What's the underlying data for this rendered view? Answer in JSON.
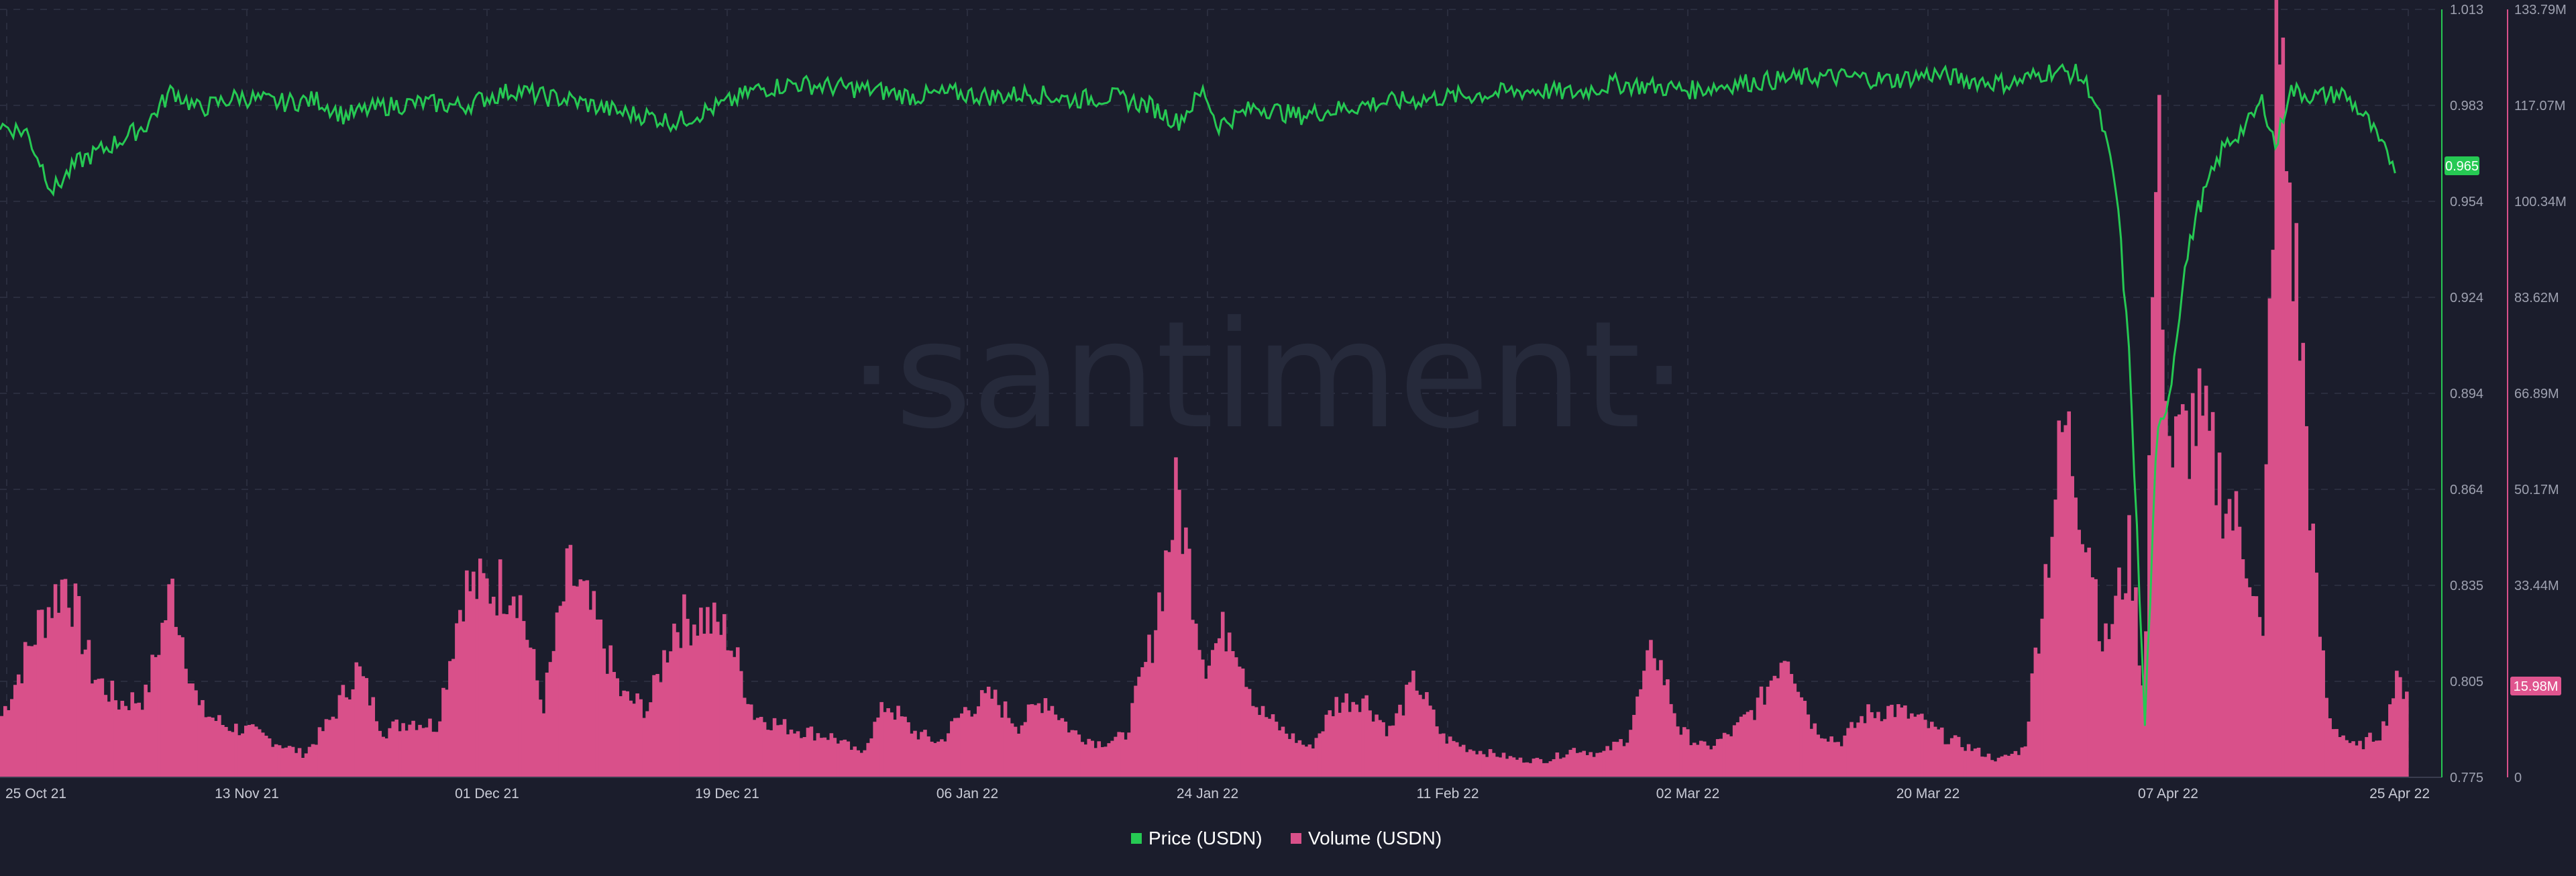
{
  "watermark": "·santiment·",
  "chart_data": {
    "type": "line+bar",
    "x_tick_labels": [
      "25 Oct 21",
      "13 Nov 21",
      "01 Dec 21",
      "19 Dec 21",
      "06 Jan 22",
      "24 Jan 22",
      "11 Feb 22",
      "02 Mar 22",
      "20 Mar 22",
      "07 Apr 22",
      "25 Apr 22"
    ],
    "x_range": [
      "2021-10-25",
      "2022-04-25"
    ],
    "price_axis": {
      "min": 0.775,
      "max": 1.013,
      "ticks": [
        "1.013",
        "0.983",
        "0.954",
        "0.924",
        "0.894",
        "0.864",
        "0.835",
        "0.805",
        "0.775"
      ]
    },
    "volume_axis": {
      "min": 0,
      "max": 133.79,
      "unit": "M",
      "ticks": [
        "133.79M",
        "117.07M",
        "100.34M",
        "83.62M",
        "66.89M",
        "50.17M",
        "33.44M",
        "15.98M",
        "0"
      ]
    },
    "current": {
      "price_label": "0.965",
      "volume_label": "15.98M"
    },
    "grid": true,
    "legend_position": "bottom-center",
    "colors": {
      "price": "#26c953",
      "volume": "#d9508a",
      "price_badge": "#26c953",
      "volume_badge": "#e0558f"
    },
    "series": [
      {
        "name": "Price (USDN)",
        "kind": "line",
        "points": [
          [
            "2021-10-25",
            0.977
          ],
          [
            "2021-10-27",
            0.975
          ],
          [
            "2021-10-29",
            0.957
          ],
          [
            "2021-10-31",
            0.966
          ],
          [
            "2021-11-02",
            0.97
          ],
          [
            "2021-11-05",
            0.977
          ],
          [
            "2021-11-07",
            0.988
          ],
          [
            "2021-11-09",
            0.982
          ],
          [
            "2021-11-12",
            0.986
          ],
          [
            "2021-11-15",
            0.984
          ],
          [
            "2021-11-18",
            0.985
          ],
          [
            "2021-11-20",
            0.98
          ],
          [
            "2021-11-23",
            0.983
          ],
          [
            "2021-11-26",
            0.984
          ],
          [
            "2021-11-29",
            0.983
          ],
          [
            "2021-12-01",
            0.986
          ],
          [
            "2021-12-03",
            0.988
          ],
          [
            "2021-12-05",
            0.986
          ],
          [
            "2021-12-07",
            0.985
          ],
          [
            "2021-12-09",
            0.983
          ],
          [
            "2021-12-11",
            0.981
          ],
          [
            "2021-12-13",
            0.98
          ],
          [
            "2021-12-15",
            0.978
          ],
          [
            "2021-12-17",
            0.981
          ],
          [
            "2021-12-19",
            0.984
          ],
          [
            "2021-12-21",
            0.988
          ],
          [
            "2021-12-24",
            0.99
          ],
          [
            "2021-12-27",
            0.989
          ],
          [
            "2021-12-30",
            0.988
          ],
          [
            "2022-01-02",
            0.986
          ],
          [
            "2022-01-05",
            0.987
          ],
          [
            "2022-01-08",
            0.986
          ],
          [
            "2022-01-11",
            0.987
          ],
          [
            "2022-01-14",
            0.985
          ],
          [
            "2022-01-17",
            0.986
          ],
          [
            "2022-01-20",
            0.983
          ],
          [
            "2022-01-22",
            0.978
          ],
          [
            "2022-01-24",
            0.988
          ],
          [
            "2022-01-25",
            0.977
          ],
          [
            "2022-01-28",
            0.983
          ],
          [
            "2022-01-31",
            0.98
          ],
          [
            "2022-02-03",
            0.982
          ],
          [
            "2022-02-06",
            0.984
          ],
          [
            "2022-02-09",
            0.985
          ],
          [
            "2022-02-12",
            0.986
          ],
          [
            "2022-02-15",
            0.987
          ],
          [
            "2022-02-18",
            0.988
          ],
          [
            "2022-02-21",
            0.987
          ],
          [
            "2022-02-24",
            0.99
          ],
          [
            "2022-02-27",
            0.989
          ],
          [
            "2022-03-02",
            0.988
          ],
          [
            "2022-03-05",
            0.99
          ],
          [
            "2022-03-08",
            0.991
          ],
          [
            "2022-03-11",
            0.992
          ],
          [
            "2022-03-14",
            0.992
          ],
          [
            "2022-03-17",
            0.991
          ],
          [
            "2022-03-20",
            0.993
          ],
          [
            "2022-03-23",
            0.991
          ],
          [
            "2022-03-26",
            0.99
          ],
          [
            "2022-03-29",
            0.994
          ],
          [
            "2022-03-31",
            0.993
          ],
          [
            "2022-04-01",
            0.988
          ],
          [
            "2022-04-02",
            0.975
          ],
          [
            "2022-04-03",
            0.955
          ],
          [
            "2022-04-04",
            0.9
          ],
          [
            "2022-04-05",
            0.8
          ],
          [
            "2022-04-05",
            0.782
          ],
          [
            "2022-04-06",
            0.88
          ],
          [
            "2022-04-07",
            0.895
          ],
          [
            "2022-04-08",
            0.93
          ],
          [
            "2022-04-09",
            0.95
          ],
          [
            "2022-04-11",
            0.97
          ],
          [
            "2022-04-13",
            0.978
          ],
          [
            "2022-04-14",
            0.985
          ],
          [
            "2022-04-15",
            0.97
          ],
          [
            "2022-04-16",
            0.988
          ],
          [
            "2022-04-18",
            0.986
          ],
          [
            "2022-04-20",
            0.987
          ],
          [
            "2022-04-21",
            0.983
          ],
          [
            "2022-04-22",
            0.978
          ],
          [
            "2022-04-23",
            0.97
          ],
          [
            "2022-04-24",
            0.965
          ]
        ]
      },
      {
        "name": "Volume (USDN)",
        "kind": "bar",
        "unit": "M",
        "points": [
          [
            "2021-10-25",
            10
          ],
          [
            "2021-10-28",
            27
          ],
          [
            "2021-10-30",
            35
          ],
          [
            "2021-11-01",
            18
          ],
          [
            "2021-11-03",
            13
          ],
          [
            "2021-11-05",
            14
          ],
          [
            "2021-11-07",
            33
          ],
          [
            "2021-11-09",
            12
          ],
          [
            "2021-11-11",
            9
          ],
          [
            "2021-11-13",
            8
          ],
          [
            "2021-11-15",
            6
          ],
          [
            "2021-11-17",
            4
          ],
          [
            "2021-11-19",
            10
          ],
          [
            "2021-11-21",
            19
          ],
          [
            "2021-11-23",
            8
          ],
          [
            "2021-11-25",
            10
          ],
          [
            "2021-11-27",
            9
          ],
          [
            "2021-11-29",
            33
          ],
          [
            "2021-12-01",
            33
          ],
          [
            "2021-12-03",
            34
          ],
          [
            "2021-12-05",
            12
          ],
          [
            "2021-12-07",
            36
          ],
          [
            "2021-12-09",
            27
          ],
          [
            "2021-12-11",
            14
          ],
          [
            "2021-12-13",
            12
          ],
          [
            "2021-12-15",
            27
          ],
          [
            "2021-12-17",
            28
          ],
          [
            "2021-12-19",
            25
          ],
          [
            "2021-12-21",
            11
          ],
          [
            "2021-12-23",
            9
          ],
          [
            "2021-12-25",
            8
          ],
          [
            "2021-12-27",
            7
          ],
          [
            "2021-12-29",
            4
          ],
          [
            "2021-12-31",
            13
          ],
          [
            "2022-01-02",
            8
          ],
          [
            "2022-01-04",
            6
          ],
          [
            "2022-01-06",
            12
          ],
          [
            "2022-01-08",
            14
          ],
          [
            "2022-01-10",
            9
          ],
          [
            "2022-01-12",
            14
          ],
          [
            "2022-01-14",
            8
          ],
          [
            "2022-01-16",
            6
          ],
          [
            "2022-01-18",
            7
          ],
          [
            "2022-01-20",
            23
          ],
          [
            "2022-01-22",
            50
          ],
          [
            "2022-01-24",
            20
          ],
          [
            "2022-01-26",
            27
          ],
          [
            "2022-01-28",
            12
          ],
          [
            "2022-01-30",
            8
          ],
          [
            "2022-02-01",
            5
          ],
          [
            "2022-02-03",
            13
          ],
          [
            "2022-02-05",
            14
          ],
          [
            "2022-02-07",
            8
          ],
          [
            "2022-02-09",
            17
          ],
          [
            "2022-02-11",
            7
          ],
          [
            "2022-02-13",
            5
          ],
          [
            "2022-02-15",
            4
          ],
          [
            "2022-02-17",
            3
          ],
          [
            "2022-02-19",
            3
          ],
          [
            "2022-02-21",
            5
          ],
          [
            "2022-02-23",
            4
          ],
          [
            "2022-02-25",
            7
          ],
          [
            "2022-02-27",
            23
          ],
          [
            "2022-03-01",
            8
          ],
          [
            "2022-03-03",
            5
          ],
          [
            "2022-03-05",
            8
          ],
          [
            "2022-03-07",
            13
          ],
          [
            "2022-03-09",
            23
          ],
          [
            "2022-03-11",
            9
          ],
          [
            "2022-03-13",
            6
          ],
          [
            "2022-03-15",
            11
          ],
          [
            "2022-03-17",
            12
          ],
          [
            "2022-03-19",
            10
          ],
          [
            "2022-03-21",
            7
          ],
          [
            "2022-03-23",
            5
          ],
          [
            "2022-03-25",
            3
          ],
          [
            "2022-03-27",
            5
          ],
          [
            "2022-03-28",
            25
          ],
          [
            "2022-03-30",
            62
          ],
          [
            "2022-04-01",
            40
          ],
          [
            "2022-04-02",
            22
          ],
          [
            "2022-04-04",
            40
          ],
          [
            "2022-04-05",
            14
          ],
          [
            "2022-04-06",
            113
          ],
          [
            "2022-04-07",
            55
          ],
          [
            "2022-04-09",
            63
          ],
          [
            "2022-04-11",
            50
          ],
          [
            "2022-04-13",
            38
          ],
          [
            "2022-04-14",
            22
          ],
          [
            "2022-04-15",
            132
          ],
          [
            "2022-04-17",
            72
          ],
          [
            "2022-04-18",
            32
          ],
          [
            "2022-04-19",
            10
          ],
          [
            "2022-04-21",
            5
          ],
          [
            "2022-04-23",
            8
          ],
          [
            "2022-04-24",
            15.98
          ]
        ]
      }
    ]
  }
}
